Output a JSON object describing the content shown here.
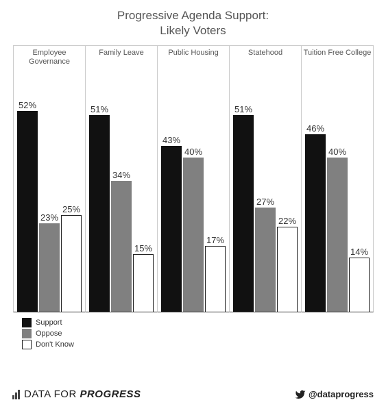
{
  "chart": {
    "title_line1": "Progressive Agenda Support:",
    "title_line2": "Likely Voters",
    "title_fontsize": 17,
    "title_color": "#555555",
    "panel_title_fontsize": 11,
    "bar_label_fontsize": 13,
    "legend_fontsize": 11,
    "background_color": "#ffffff",
    "panel_border_color": "#cccccc",
    "baseline_color": "#333333",
    "y_max": 60,
    "series": [
      {
        "key": "support",
        "label": "Support",
        "fill": "#111111",
        "border": "#111111"
      },
      {
        "key": "oppose",
        "label": "Oppose",
        "fill": "#808080",
        "border": "#808080"
      },
      {
        "key": "dontknow",
        "label": "Don't Know",
        "fill": "#ffffff",
        "border": "#222222"
      }
    ],
    "panels": [
      {
        "title": "Employee Governance",
        "values": {
          "support": 52,
          "oppose": 23,
          "dontknow": 25
        }
      },
      {
        "title": "Family Leave",
        "values": {
          "support": 51,
          "oppose": 34,
          "dontknow": 15
        }
      },
      {
        "title": "Public Housing",
        "values": {
          "support": 43,
          "oppose": 40,
          "dontknow": 17
        }
      },
      {
        "title": "Statehood",
        "values": {
          "support": 51,
          "oppose": 27,
          "dontknow": 22
        }
      },
      {
        "title": "Tuition Free College",
        "values": {
          "support": 46,
          "oppose": 40,
          "dontknow": 14
        }
      }
    ]
  },
  "footer": {
    "brand_pre": "DATA FOR",
    "brand_strong": "PROGRESS",
    "brand_fontsize": 15,
    "handle": "@dataprogress",
    "handle_fontsize": 13
  }
}
